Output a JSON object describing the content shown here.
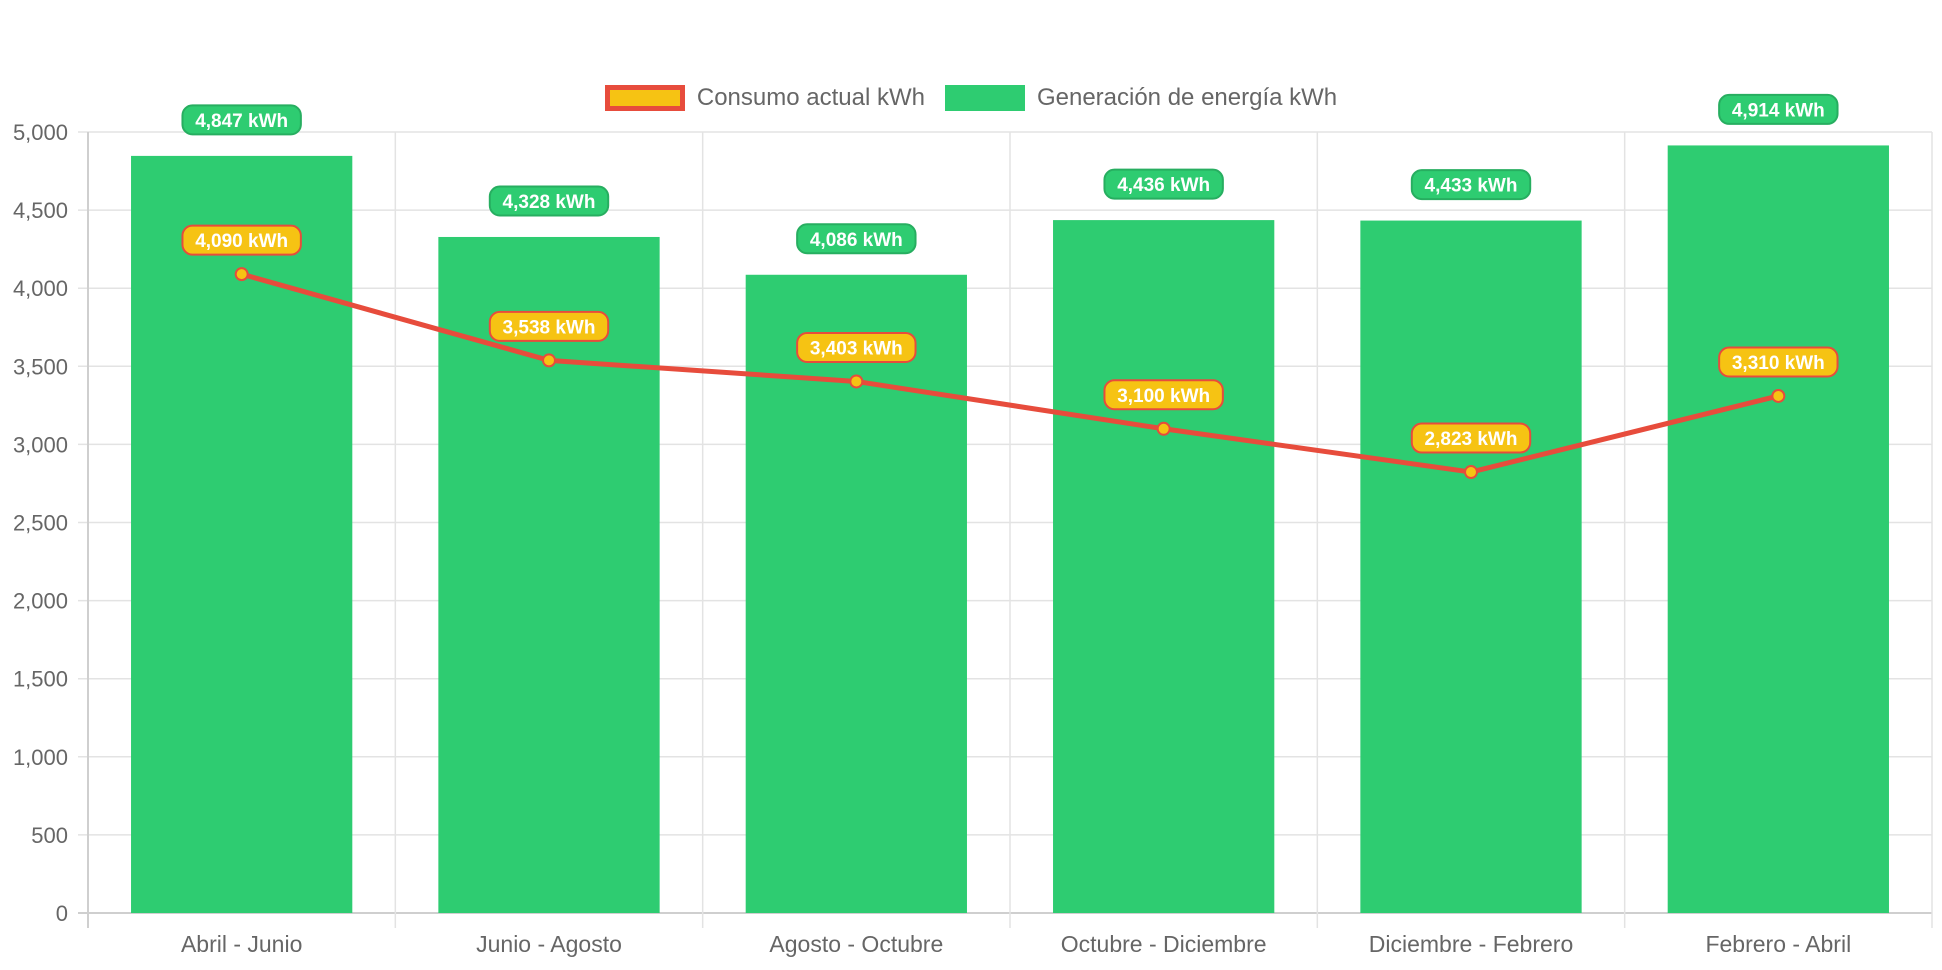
{
  "legend": {
    "items": [
      {
        "label": "Consumo actual kWh",
        "fill": "#f6c313",
        "border": "#e74c3c"
      },
      {
        "label": "Generación de energía kWh",
        "fill": "#2ecc71",
        "border": "#2ecc71"
      }
    ]
  },
  "chart_data": {
    "type": "bar",
    "categories": [
      "Abril - Junio",
      "Junio - Agosto",
      "Agosto - Octubre",
      "Octubre - Diciembre",
      "Diciembre - Febrero",
      "Febrero - Abril"
    ],
    "series": [
      {
        "name": "Generación de energía kWh",
        "kind": "bar",
        "color": "#2ecc71",
        "values": [
          4847,
          4328,
          4086,
          4436,
          4433,
          4914
        ],
        "labels": [
          "4,847 kWh",
          "4,328 kWh",
          "4,086 kWh",
          "4,436 kWh",
          "4,433 kWh",
          "4,914 kWh"
        ]
      },
      {
        "name": "Consumo actual kWh",
        "kind": "line",
        "color": "#e74c3c",
        "point_color": "#f6c313",
        "values": [
          4090,
          3538,
          3403,
          3100,
          2823,
          3310
        ],
        "labels": [
          "4,090 kWh",
          "3,538 kWh",
          "3,403 kWh",
          "3,100 kWh",
          "2,823 kWh",
          "3,310 kWh"
        ]
      }
    ],
    "ylim": [
      0,
      5000
    ],
    "yticks": [
      0,
      500,
      1000,
      1500,
      2000,
      2500,
      3000,
      3500,
      4000,
      4500,
      5000
    ],
    "ytick_labels": [
      "0",
      "500",
      "1,000",
      "1,500",
      "2,000",
      "2,500",
      "3,000",
      "3,500",
      "4,000",
      "4,500",
      "5,000"
    ],
    "grid": true,
    "legend_position": "top-center"
  }
}
